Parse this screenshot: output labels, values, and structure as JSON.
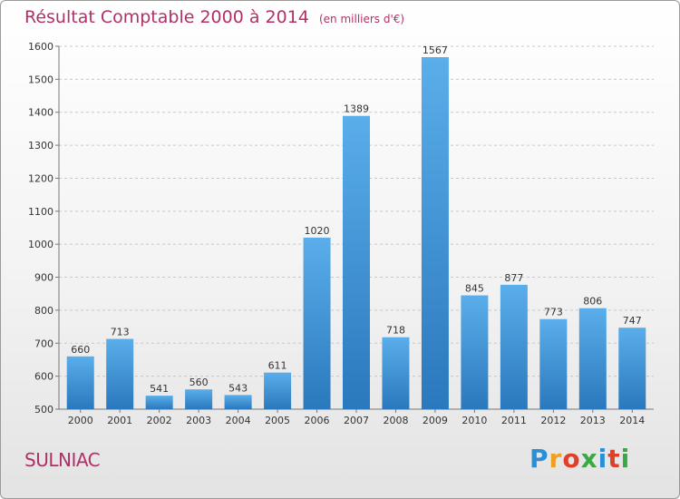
{
  "title": "Résultat Comptable 2000 à 2014",
  "unit": "(en milliers d'€)",
  "location": "SULNIAC",
  "logo": {
    "text": "Proxiti",
    "colors": [
      "#2a8fd6",
      "#f0a020",
      "#e0402a",
      "#3aa845",
      "#2a8fd6",
      "#e0402a",
      "#3aa845"
    ]
  },
  "colors": {
    "title": "#b03068",
    "bar_top": "#5aaeea",
    "bar_bottom": "#2a78bd"
  },
  "chart_data": {
    "type": "bar",
    "title": "Résultat Comptable 2000 à 2014",
    "xlabel": "",
    "ylabel": "",
    "ylim": [
      500,
      1600
    ],
    "yticks": [
      500,
      600,
      700,
      800,
      900,
      1000,
      1100,
      1200,
      1300,
      1400,
      1500,
      1600
    ],
    "categories": [
      "2000",
      "2001",
      "2002",
      "2003",
      "2004",
      "2005",
      "2006",
      "2007",
      "2008",
      "2009",
      "2010",
      "2011",
      "2012",
      "2013",
      "2014"
    ],
    "values": [
      660,
      713,
      541,
      560,
      543,
      611,
      1020,
      1389,
      718,
      1567,
      845,
      877,
      773,
      806,
      747
    ],
    "grid": true
  }
}
